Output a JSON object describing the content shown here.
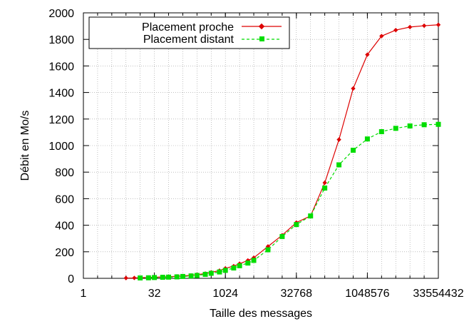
{
  "chart_data": {
    "type": "line",
    "title": "",
    "xlabel": "Taille des messages",
    "ylabel": "Débit en Mo/s",
    "x_scale": "log2",
    "xlim": [
      1,
      33554432
    ],
    "ylim": [
      0,
      2000
    ],
    "x_ticks": [
      1,
      32,
      1024,
      32768,
      1048576,
      33554432
    ],
    "x_tick_labels": [
      "1",
      "32",
      "1024",
      "32768",
      "1048576",
      "33554432"
    ],
    "y_ticks": [
      0,
      200,
      400,
      600,
      800,
      1000,
      1200,
      1400,
      1600,
      1800,
      2000
    ],
    "y_tick_labels": [
      "0",
      "200",
      "400",
      "600",
      "800",
      "1000",
      "1200",
      "1400",
      "1600",
      "1800",
      "2000"
    ],
    "grid": true,
    "legend_position": "top-left",
    "series": [
      {
        "name": "Placement proche",
        "color": "#dd0000",
        "marker": "diamond",
        "line_style": "solid",
        "points": [
          [
            8,
            2
          ],
          [
            12,
            3
          ],
          [
            16,
            5
          ],
          [
            24,
            6
          ],
          [
            32,
            8
          ],
          [
            48,
            10
          ],
          [
            64,
            12
          ],
          [
            96,
            15
          ],
          [
            128,
            18
          ],
          [
            192,
            22
          ],
          [
            256,
            28
          ],
          [
            384,
            36
          ],
          [
            512,
            45
          ],
          [
            768,
            58
          ],
          [
            1024,
            75
          ],
          [
            1536,
            92
          ],
          [
            2048,
            110
          ],
          [
            3072,
            135
          ],
          [
            4096,
            155
          ],
          [
            8192,
            240
          ],
          [
            16384,
            325
          ],
          [
            32768,
            420
          ],
          [
            65536,
            470
          ],
          [
            131072,
            720
          ],
          [
            262144,
            1045
          ],
          [
            524288,
            1430
          ],
          [
            1048576,
            1685
          ],
          [
            2097152,
            1825
          ],
          [
            4194304,
            1870
          ],
          [
            8388608,
            1893
          ],
          [
            16777216,
            1903
          ],
          [
            33554432,
            1910
          ]
        ]
      },
      {
        "name": "Placement distant",
        "color": "#00dd00",
        "marker": "square",
        "line_style": "dashed",
        "points": [
          [
            16,
            3
          ],
          [
            24,
            4
          ],
          [
            32,
            6
          ],
          [
            48,
            8
          ],
          [
            64,
            9
          ],
          [
            96,
            11
          ],
          [
            128,
            14
          ],
          [
            192,
            18
          ],
          [
            256,
            22
          ],
          [
            384,
            30
          ],
          [
            512,
            38
          ],
          [
            768,
            48
          ],
          [
            1024,
            60
          ],
          [
            1536,
            78
          ],
          [
            2048,
            95
          ],
          [
            3072,
            115
          ],
          [
            4096,
            135
          ],
          [
            8192,
            215
          ],
          [
            16384,
            315
          ],
          [
            32768,
            405
          ],
          [
            65536,
            470
          ],
          [
            131072,
            680
          ],
          [
            262144,
            855
          ],
          [
            524288,
            965
          ],
          [
            1048576,
            1050
          ],
          [
            2097152,
            1105
          ],
          [
            4194304,
            1130
          ],
          [
            8388608,
            1148
          ],
          [
            16777216,
            1157
          ],
          [
            33554432,
            1160
          ]
        ]
      }
    ]
  }
}
